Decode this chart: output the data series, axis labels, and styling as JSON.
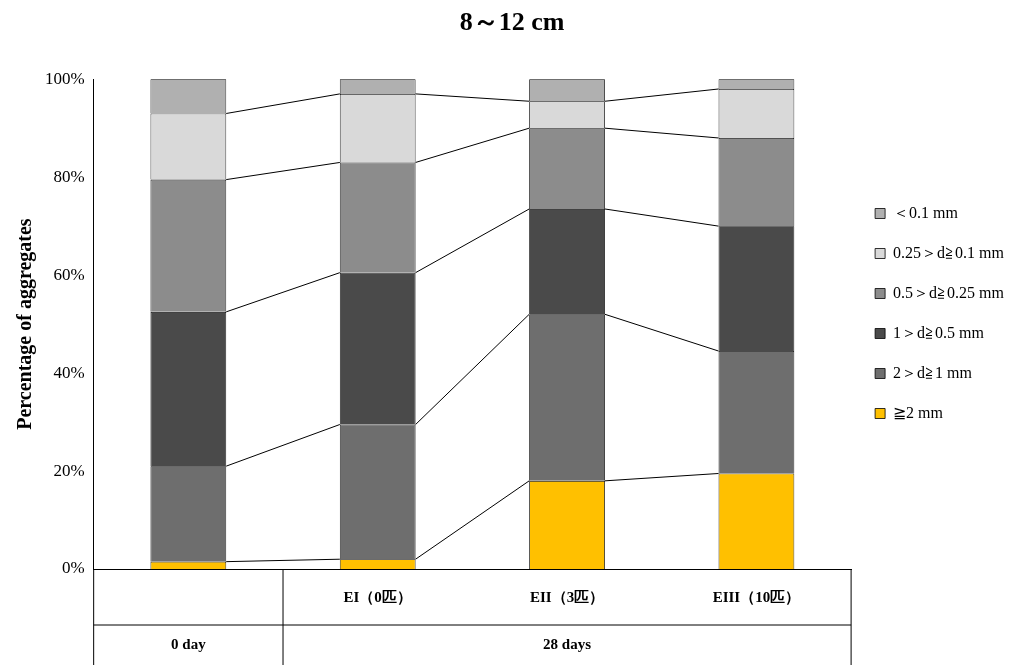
{
  "chart_data": {
    "type": "bar",
    "title": "8～12 cm",
    "ylabel": "Percentage of aggregates",
    "stacked": true,
    "legend": "right",
    "grid": false,
    "categories": [
      null,
      "EI（0匹）",
      "EII（3匹）",
      "EIII（10匹）"
    ],
    "annotations": [
      "0 day",
      "28 days"
    ],
    "ylim": [
      0,
      100
    ],
    "yticks": [
      {
        "value": 0,
        "label": "0%"
      },
      {
        "value": 20,
        "label": "20%"
      },
      {
        "value": 40,
        "label": "40%"
      },
      {
        "value": 60,
        "label": "60%"
      },
      {
        "value": 80,
        "label": "80%"
      },
      {
        "value": 100,
        "label": "100%"
      }
    ],
    "series": [
      {
        "name": "≧2 mm",
        "color": "#ffc000",
        "values": [
          1.5,
          2,
          18,
          19.5
        ]
      },
      {
        "name": "2＞d≧1 mm",
        "color": "#6e6e6e",
        "values": [
          19.5,
          27.5,
          34,
          25
        ]
      },
      {
        "name": "1＞d≧0.5 mm",
        "color": "#4a4a4a",
        "values": [
          31.5,
          31,
          21.5,
          25.5
        ]
      },
      {
        "name": "0.5＞d≧0.25 mm",
        "color": "#8c8c8c",
        "values": [
          27,
          22.5,
          16.5,
          18
        ]
      },
      {
        "name": "0.25＞d≧0.1 mm",
        "color": "#d9d9d9",
        "values": [
          13.5,
          14,
          5.5,
          10
        ]
      },
      {
        "name": "＜0.1 mm",
        "color": "#b0b0b0",
        "values": [
          7,
          3,
          4.5,
          2
        ]
      }
    ]
  }
}
